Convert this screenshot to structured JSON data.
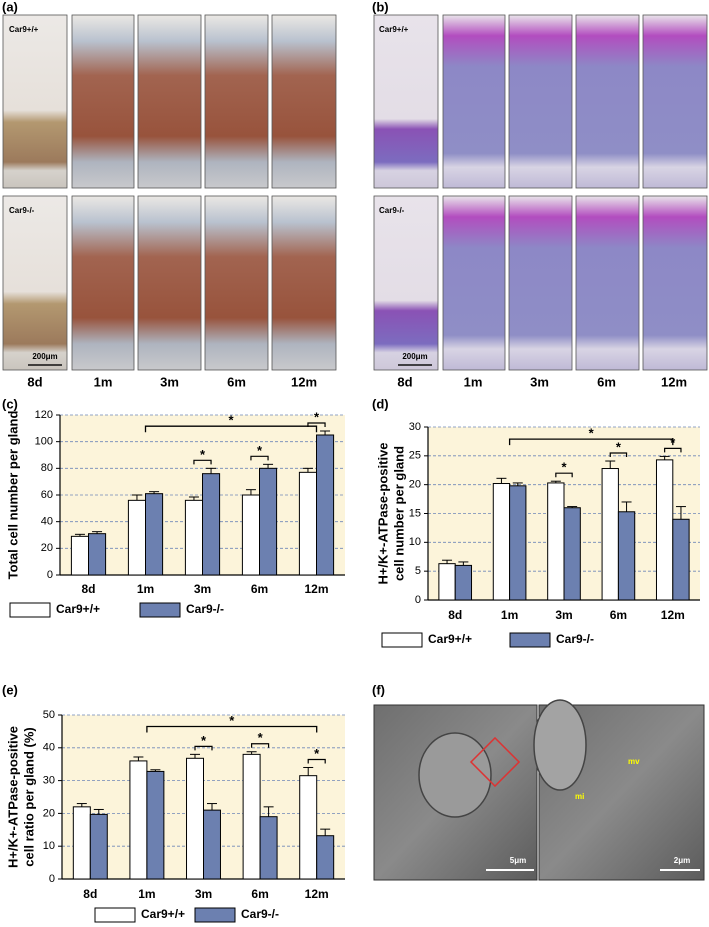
{
  "panels": {
    "a": {
      "label": "(a)",
      "row_labels": [
        "Car9+/+",
        "Car9-/-"
      ],
      "scale_bar": "200μm",
      "time_labels": [
        "8d",
        "1m",
        "3m",
        "6m",
        "12m"
      ]
    },
    "b": {
      "label": "(b)",
      "row_labels": [
        "Car9+/+",
        "Car9-/-"
      ],
      "scale_bar": "200μm",
      "time_labels": [
        "8d",
        "1m",
        "3m",
        "6m",
        "12m"
      ]
    },
    "f": {
      "label": "(f)",
      "scale_bars": [
        "5μm",
        "2μm"
      ],
      "annotations": [
        "mi",
        "mv"
      ]
    }
  },
  "chart_data": [
    {
      "label": "(c)",
      "type": "bar",
      "y_label": [
        "Total cell number per gland"
      ],
      "categories": [
        "8d",
        "1m",
        "3m",
        "6m",
        "12m"
      ],
      "series": [
        {
          "name": "Car9+/+",
          "color": "#ffffff",
          "values": [
            29,
            56,
            56,
            60,
            77
          ],
          "errors": [
            1.5,
            4,
            2.5,
            4,
            3
          ]
        },
        {
          "name": "Car9-/-",
          "color": "#6c80b0",
          "values": [
            31,
            61,
            76,
            80,
            105
          ],
          "errors": [
            1.5,
            1.5,
            4,
            3,
            3
          ]
        }
      ],
      "ylim": [
        0,
        120
      ],
      "yticks": [
        0,
        20,
        40,
        60,
        80,
        100,
        120
      ],
      "grid": true,
      "annotations": [
        {
          "text": "*",
          "categories": [
            "1m",
            "12m"
          ]
        },
        {
          "text": "*",
          "categories": [
            "3m"
          ]
        },
        {
          "text": "*",
          "categories": [
            "6m"
          ]
        },
        {
          "text": "*",
          "categories": [
            "12m"
          ]
        }
      ]
    },
    {
      "label": "(d)",
      "type": "bar",
      "y_label": [
        "H+/K+-ATPase-positive",
        "cell number per gland"
      ],
      "categories": [
        "8d",
        "1m",
        "3m",
        "6m",
        "12m"
      ],
      "series": [
        {
          "name": "Car9+/+",
          "color": "#ffffff",
          "values": [
            6.3,
            20.2,
            20.3,
            22.8,
            24.3
          ],
          "errors": [
            0.6,
            0.9,
            0.3,
            1.3,
            0.6
          ]
        },
        {
          "name": "Car9-/-",
          "color": "#6c80b0",
          "values": [
            6.0,
            19.8,
            16.0,
            15.3,
            14.0
          ],
          "errors": [
            0.6,
            0.5,
            0.2,
            1.7,
            2.2
          ]
        }
      ],
      "ylim": [
        0,
        30
      ],
      "yticks": [
        0,
        5,
        10,
        15,
        20,
        25,
        30
      ],
      "grid": true,
      "annotations": [
        {
          "text": "*",
          "categories": [
            "1m",
            "12m"
          ]
        },
        {
          "text": "*",
          "categories": [
            "3m"
          ]
        },
        {
          "text": "*",
          "categories": [
            "6m"
          ]
        },
        {
          "text": "*",
          "categories": [
            "12m"
          ]
        }
      ]
    },
    {
      "label": "(e)",
      "type": "bar",
      "y_label": [
        "H+/K+-ATPase-positive",
        "cell ratio per gland (%)"
      ],
      "categories": [
        "8d",
        "1m",
        "3m",
        "6m",
        "12m"
      ],
      "series": [
        {
          "name": "Car9+/+",
          "color": "#ffffff",
          "values": [
            22,
            36,
            36.8,
            38,
            31.5
          ],
          "errors": [
            1,
            1.2,
            1.2,
            0.8,
            2.5
          ]
        },
        {
          "name": "Car9-/-",
          "color": "#6c80b0",
          "values": [
            19.7,
            32.8,
            21,
            19,
            13.2
          ],
          "errors": [
            1.5,
            0.5,
            2,
            3,
            2
          ]
        }
      ],
      "ylim": [
        0,
        50
      ],
      "yticks": [
        0,
        10,
        20,
        30,
        40,
        50
      ],
      "grid": true,
      "annotations": [
        {
          "text": "*",
          "categories": [
            "1m",
            "12m"
          ]
        },
        {
          "text": "*",
          "categories": [
            "3m"
          ]
        },
        {
          "text": "*",
          "categories": [
            "6m"
          ]
        },
        {
          "text": "*",
          "categories": [
            "12m"
          ]
        }
      ]
    }
  ]
}
